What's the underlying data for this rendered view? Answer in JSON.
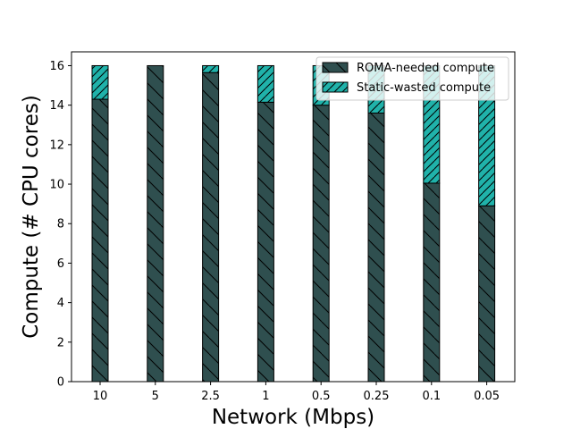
{
  "chart_data": {
    "type": "bar",
    "stacked": true,
    "xlabel": "Network (Mbps)",
    "ylabel": "Compute (# CPU cores)",
    "categories": [
      "10",
      "5",
      "2.5",
      "1",
      "0.5",
      "0.25",
      "0.1",
      "0.05"
    ],
    "ylim": [
      0,
      16.7
    ],
    "yticks": [
      "0",
      "2",
      "4",
      "6",
      "8",
      "10",
      "12",
      "14",
      "16"
    ],
    "grid": false,
    "legend_position": "top-right",
    "series": [
      {
        "name": "ROMA-needed compute",
        "values": [
          14.3,
          16.0,
          15.65,
          14.15,
          14.0,
          13.6,
          10.05,
          8.9
        ],
        "color": "#2f4f4f",
        "hatch": "\\\\"
      },
      {
        "name": "Static-wasted compute",
        "values": [
          1.7,
          0.0,
          0.35,
          1.85,
          2.0,
          2.4,
          5.95,
          7.1
        ],
        "color": "#20b2aa",
        "hatch": "//"
      }
    ]
  }
}
